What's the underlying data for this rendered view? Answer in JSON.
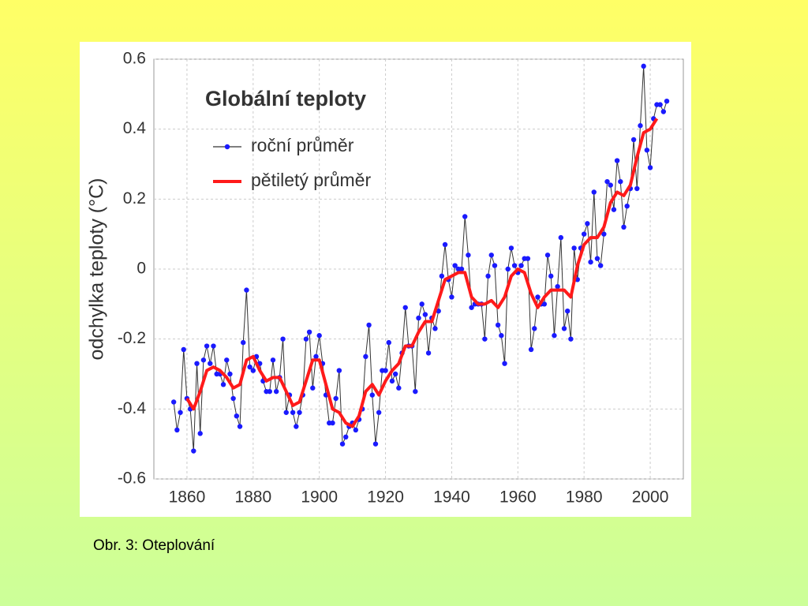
{
  "chart_data": {
    "type": "line",
    "title": "Globální teploty",
    "ylabel": "odchylka teploty (°C)",
    "caption": "Obr. 3: Oteplování",
    "xlim": [
      1850,
      2010
    ],
    "xticks": [
      1860,
      1880,
      1900,
      1920,
      1940,
      1960,
      1980,
      2000
    ],
    "ylim": [
      -0.6,
      0.6
    ],
    "yticks": [
      0.6,
      0.4,
      0.2,
      0,
      -0.2,
      -0.4,
      -0.6
    ],
    "grid": true,
    "legend": "upper left",
    "series": [
      {
        "name": "roční průměr",
        "color": "#1a1aff",
        "line_color": "#333333",
        "markers": true,
        "x": [
          1856,
          1857,
          1858,
          1859,
          1860,
          1861,
          1862,
          1863,
          1864,
          1865,
          1866,
          1867,
          1868,
          1869,
          1870,
          1871,
          1872,
          1873,
          1874,
          1875,
          1876,
          1877,
          1878,
          1879,
          1880,
          1881,
          1882,
          1883,
          1884,
          1885,
          1886,
          1887,
          1888,
          1889,
          1890,
          1891,
          1892,
          1893,
          1894,
          1895,
          1896,
          1897,
          1898,
          1899,
          1900,
          1901,
          1902,
          1903,
          1904,
          1905,
          1906,
          1907,
          1908,
          1909,
          1910,
          1911,
          1912,
          1913,
          1914,
          1915,
          1916,
          1917,
          1918,
          1919,
          1920,
          1921,
          1922,
          1923,
          1924,
          1925,
          1926,
          1927,
          1928,
          1929,
          1930,
          1931,
          1932,
          1933,
          1934,
          1935,
          1936,
          1937,
          1938,
          1939,
          1940,
          1941,
          1942,
          1943,
          1944,
          1945,
          1946,
          1947,
          1948,
          1949,
          1950,
          1951,
          1952,
          1953,
          1954,
          1955,
          1956,
          1957,
          1958,
          1959,
          1960,
          1961,
          1962,
          1963,
          1964,
          1965,
          1966,
          1967,
          1968,
          1969,
          1970,
          1971,
          1972,
          1973,
          1974,
          1975,
          1976,
          1977,
          1978,
          1979,
          1980,
          1981,
          1982,
          1983,
          1984,
          1985,
          1986,
          1987,
          1988,
          1989,
          1990,
          1991,
          1992,
          1993,
          1994,
          1995,
          1996,
          1997,
          1998,
          1999,
          2000,
          2001,
          2002,
          2003,
          2004,
          2005
        ],
        "values": [
          -0.38,
          -0.46,
          -0.41,
          -0.23,
          -0.37,
          -0.4,
          -0.52,
          -0.27,
          -0.47,
          -0.26,
          -0.22,
          -0.27,
          -0.22,
          -0.3,
          -0.3,
          -0.33,
          -0.26,
          -0.3,
          -0.37,
          -0.42,
          -0.45,
          -0.21,
          -0.06,
          -0.28,
          -0.29,
          -0.25,
          -0.27,
          -0.32,
          -0.35,
          -0.35,
          -0.26,
          -0.35,
          -0.31,
          -0.2,
          -0.41,
          -0.36,
          -0.41,
          -0.45,
          -0.41,
          -0.36,
          -0.2,
          -0.18,
          -0.34,
          -0.25,
          -0.19,
          -0.27,
          -0.36,
          -0.44,
          -0.44,
          -0.37,
          -0.29,
          -0.5,
          -0.48,
          -0.45,
          -0.44,
          -0.46,
          -0.43,
          -0.4,
          -0.25,
          -0.16,
          -0.36,
          -0.5,
          -0.41,
          -0.29,
          -0.29,
          -0.21,
          -0.32,
          -0.3,
          -0.34,
          -0.24,
          -0.11,
          -0.22,
          -0.22,
          -0.35,
          -0.14,
          -0.1,
          -0.13,
          -0.24,
          -0.14,
          -0.17,
          -0.12,
          -0.02,
          0.07,
          -0.03,
          -0.08,
          0.01,
          0.0,
          0.0,
          0.15,
          0.04,
          -0.11,
          -0.1,
          -0.1,
          -0.1,
          -0.2,
          -0.02,
          0.04,
          0.01,
          -0.16,
          -0.19,
          -0.27,
          0.0,
          0.06,
          0.01,
          -0.01,
          0.01,
          0.03,
          0.03,
          -0.23,
          -0.17,
          -0.08,
          -0.1,
          -0.1,
          0.04,
          -0.02,
          -0.19,
          -0.05,
          0.09,
          -0.17,
          -0.12,
          -0.2,
          0.06,
          -0.03,
          0.06,
          0.1,
          0.13,
          0.02,
          0.22,
          0.03,
          0.01,
          0.1,
          0.25,
          0.24,
          0.17,
          0.31,
          0.25,
          0.12,
          0.18,
          0.23,
          0.37,
          0.23,
          0.41,
          0.58,
          0.34,
          0.29,
          0.43,
          0.47,
          0.47,
          0.45,
          0.48
        ]
      },
      {
        "name": "pětiletý průměr",
        "color": "#ff1a1a",
        "markers": false,
        "x": [
          1860,
          1862,
          1864,
          1866,
          1868,
          1870,
          1872,
          1874,
          1876,
          1878,
          1880,
          1882,
          1884,
          1886,
          1888,
          1890,
          1892,
          1894,
          1896,
          1898,
          1900,
          1902,
          1904,
          1906,
          1908,
          1910,
          1912,
          1914,
          1916,
          1918,
          1920,
          1922,
          1924,
          1926,
          1928,
          1930,
          1932,
          1934,
          1936,
          1938,
          1940,
          1942,
          1944,
          1946,
          1948,
          1950,
          1952,
          1954,
          1956,
          1958,
          1960,
          1962,
          1964,
          1966,
          1968,
          1970,
          1972,
          1974,
          1976,
          1978,
          1980,
          1982,
          1984,
          1986,
          1988,
          1990,
          1992,
          1994,
          1996,
          1998,
          2000,
          2002
        ],
        "values": [
          -0.37,
          -0.4,
          -0.35,
          -0.29,
          -0.28,
          -0.29,
          -0.31,
          -0.34,
          -0.33,
          -0.26,
          -0.25,
          -0.29,
          -0.32,
          -0.31,
          -0.31,
          -0.35,
          -0.39,
          -0.38,
          -0.32,
          -0.26,
          -0.26,
          -0.33,
          -0.4,
          -0.41,
          -0.44,
          -0.45,
          -0.42,
          -0.35,
          -0.33,
          -0.36,
          -0.32,
          -0.29,
          -0.27,
          -0.22,
          -0.22,
          -0.18,
          -0.15,
          -0.15,
          -0.09,
          -0.03,
          -0.02,
          -0.01,
          -0.01,
          -0.08,
          -0.1,
          -0.1,
          -0.09,
          -0.11,
          -0.08,
          -0.02,
          0.0,
          -0.01,
          -0.07,
          -0.11,
          -0.08,
          -0.06,
          -0.06,
          -0.06,
          -0.08,
          0.01,
          0.07,
          0.09,
          0.09,
          0.12,
          0.19,
          0.22,
          0.21,
          0.24,
          0.32,
          0.39,
          0.4,
          0.43
        ]
      }
    ]
  }
}
